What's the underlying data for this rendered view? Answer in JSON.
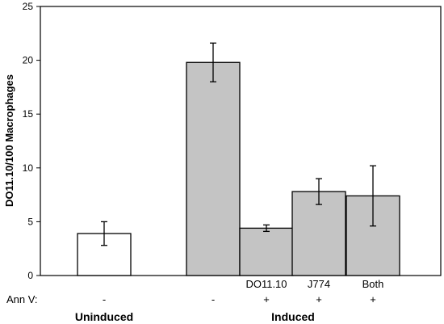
{
  "chart_data": {
    "type": "bar",
    "ylabel": "DO11.10/100 Macrophages",
    "ylim": [
      0,
      25
    ],
    "yticks": [
      0,
      5,
      10,
      15,
      20,
      25
    ],
    "grid": false,
    "row_label": "Ann V:",
    "categories": [
      "",
      "",
      "DO11.10",
      "J774",
      "Both"
    ],
    "ann_v": [
      "-",
      "-",
      "+",
      "+",
      "+"
    ],
    "values": [
      3.9,
      19.8,
      4.4,
      7.8,
      7.4
    ],
    "error_low": [
      2.8,
      18.0,
      4.1,
      6.6,
      4.6
    ],
    "error_high": [
      5.0,
      21.6,
      4.7,
      9.0,
      10.2
    ],
    "bar_colors": [
      "#ffffff",
      "#c4c4c4",
      "#c4c4c4",
      "#c4c4c4",
      "#c4c4c4"
    ],
    "groups": [
      {
        "label": "Uninduced",
        "bars": [
          0
        ]
      },
      {
        "label": "Induced",
        "bars": [
          1,
          2,
          3,
          4
        ]
      }
    ]
  }
}
